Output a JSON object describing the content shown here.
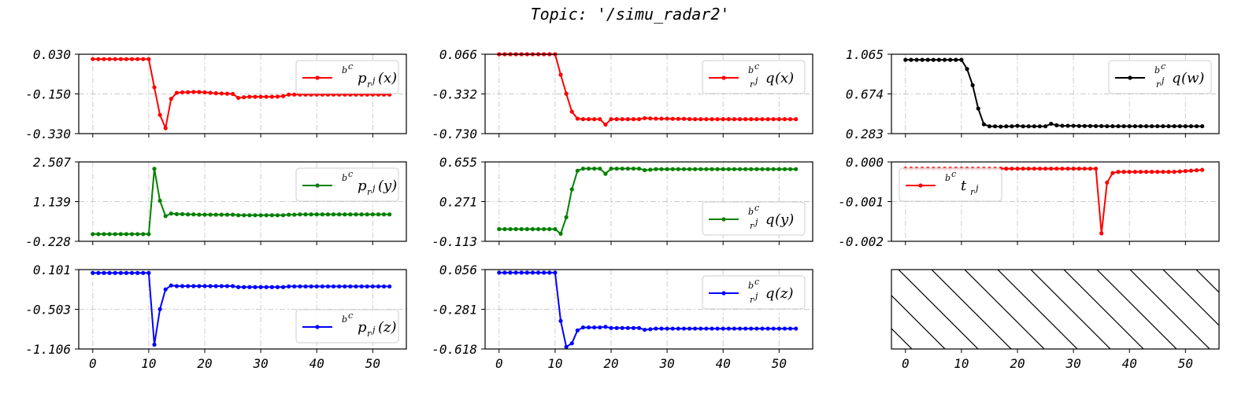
{
  "title": "Topic: '/simu_radar2'",
  "chart_data": [
    {
      "type": "line",
      "panel": "row1-col1",
      "color": "#ff0000",
      "legend_pos": "upper-right",
      "legend": {
        "sup": "b",
        "supsup": "c",
        "main": "p",
        "sub": "r",
        "subsup": "j",
        "arg": "(x)"
      },
      "ylim": [
        -0.33,
        0.03
      ],
      "yticks": [
        "0.030",
        "-0.150",
        "-0.330"
      ],
      "yticks_v": [
        0.03,
        -0.15,
        -0.33
      ],
      "xticks": [
        "0",
        "10",
        "20",
        "30",
        "40",
        "50"
      ],
      "show_x_labels": false,
      "xlim": [
        -2.5,
        56
      ],
      "y": [
        0.008,
        0.008,
        0.008,
        0.008,
        0.008,
        0.008,
        0.008,
        0.008,
        0.008,
        0.008,
        0.008,
        -0.12,
        -0.245,
        -0.305,
        -0.172,
        -0.145,
        -0.143,
        -0.142,
        -0.141,
        -0.141,
        -0.143,
        -0.145,
        -0.147,
        -0.148,
        -0.149,
        -0.15,
        -0.168,
        -0.165,
        -0.163,
        -0.163,
        -0.163,
        -0.163,
        -0.163,
        -0.162,
        -0.16,
        -0.153,
        -0.153,
        -0.153,
        -0.153,
        -0.153,
        -0.153,
        -0.153,
        -0.153,
        -0.153,
        -0.153,
        -0.153,
        -0.153,
        -0.153,
        -0.153,
        -0.153,
        -0.153,
        -0.153,
        -0.153,
        -0.153
      ]
    },
    {
      "type": "line",
      "panel": "row1-col2",
      "color": "#ff0000",
      "legend_pos": "upper-right",
      "legend": {
        "sup": "b",
        "supsup": "c",
        "main": "q",
        "sub": "r",
        "subsup": "j",
        "arg": "(x)",
        "presub": true
      },
      "ylim": [
        -0.73,
        0.066
      ],
      "yticks": [
        "0.066",
        "-0.332",
        "-0.730"
      ],
      "yticks_v": [
        0.066,
        -0.332,
        -0.73
      ],
      "xticks": [
        "0",
        "10",
        "20",
        "30",
        "40",
        "50"
      ],
      "show_x_labels": false,
      "xlim": [
        -2.5,
        56
      ],
      "y": [
        0.066,
        0.066,
        0.066,
        0.066,
        0.066,
        0.066,
        0.066,
        0.066,
        0.066,
        0.066,
        0.066,
        -0.14,
        -0.33,
        -0.51,
        -0.58,
        -0.585,
        -0.585,
        -0.585,
        -0.585,
        -0.64,
        -0.585,
        -0.585,
        -0.585,
        -0.585,
        -0.585,
        -0.585,
        -0.575,
        -0.578,
        -0.58,
        -0.58,
        -0.58,
        -0.582,
        -0.582,
        -0.582,
        -0.584,
        -0.585,
        -0.585,
        -0.585,
        -0.585,
        -0.585,
        -0.585,
        -0.585,
        -0.585,
        -0.585,
        -0.585,
        -0.585,
        -0.585,
        -0.585,
        -0.585,
        -0.585,
        -0.585,
        -0.585,
        -0.585,
        -0.585
      ]
    },
    {
      "type": "line",
      "panel": "row1-col3",
      "color": "#000000",
      "legend_pos": "upper-right",
      "legend": {
        "sup": "b",
        "supsup": "c",
        "main": "q",
        "sub": "r",
        "subsup": "j",
        "arg": "(w)",
        "presub": true
      },
      "ylim": [
        0.283,
        1.065
      ],
      "yticks": [
        "1.065",
        "0.674",
        "0.283"
      ],
      "yticks_v": [
        1.065,
        0.674,
        0.283
      ],
      "xticks": [
        "0",
        "10",
        "20",
        "30",
        "40",
        "50"
      ],
      "show_x_labels": false,
      "xlim": [
        -2.5,
        56
      ],
      "y": [
        1.01,
        1.01,
        1.01,
        1.01,
        1.01,
        1.01,
        1.01,
        1.01,
        1.01,
        1.01,
        1.01,
        0.92,
        0.76,
        0.53,
        0.375,
        0.355,
        0.355,
        0.352,
        0.355,
        0.355,
        0.36,
        0.355,
        0.355,
        0.355,
        0.355,
        0.355,
        0.38,
        0.365,
        0.36,
        0.36,
        0.36,
        0.358,
        0.358,
        0.358,
        0.357,
        0.357,
        0.356,
        0.356,
        0.356,
        0.356,
        0.356,
        0.356,
        0.356,
        0.356,
        0.356,
        0.356,
        0.356,
        0.356,
        0.356,
        0.356,
        0.356,
        0.356,
        0.356,
        0.356
      ]
    },
    {
      "type": "line",
      "panel": "row2-col1",
      "color": "#008000",
      "legend_pos": "upper-right",
      "legend": {
        "sup": "b",
        "supsup": "c",
        "main": "p",
        "sub": "r",
        "subsup": "j",
        "arg": "(y)"
      },
      "ylim": [
        -0.228,
        2.507
      ],
      "yticks": [
        "2.507",
        "1.139",
        "-0.228"
      ],
      "yticks_v": [
        2.507,
        1.139,
        -0.228
      ],
      "xticks": [
        "0",
        "10",
        "20",
        "30",
        "40",
        "50"
      ],
      "show_x_labels": false,
      "xlim": [
        -2.5,
        56
      ],
      "y": [
        0.02,
        0.02,
        0.02,
        0.02,
        0.02,
        0.02,
        0.02,
        0.02,
        0.02,
        0.02,
        0.02,
        2.27,
        1.17,
        0.64,
        0.73,
        0.71,
        0.71,
        0.7,
        0.7,
        0.69,
        0.69,
        0.69,
        0.69,
        0.69,
        0.69,
        0.69,
        0.67,
        0.67,
        0.67,
        0.67,
        0.67,
        0.67,
        0.67,
        0.67,
        0.67,
        0.69,
        0.69,
        0.7,
        0.7,
        0.7,
        0.7,
        0.7,
        0.7,
        0.7,
        0.7,
        0.7,
        0.7,
        0.7,
        0.7,
        0.7,
        0.7,
        0.7,
        0.7,
        0.7
      ]
    },
    {
      "type": "line",
      "panel": "row2-col2",
      "color": "#008000",
      "legend_pos": "lower-right",
      "legend": {
        "sup": "b",
        "supsup": "c",
        "main": "q",
        "sub": "r",
        "subsup": "j",
        "arg": "(y)",
        "presub": true
      },
      "ylim": [
        -0.113,
        0.655
      ],
      "yticks": [
        "0.655",
        "0.271",
        "-0.113"
      ],
      "yticks_v": [
        0.655,
        0.271,
        -0.113
      ],
      "xticks": [
        "0",
        "10",
        "20",
        "30",
        "40",
        "50"
      ],
      "show_x_labels": false,
      "xlim": [
        -2.5,
        56
      ],
      "y": [
        0.005,
        0.005,
        0.005,
        0.005,
        0.005,
        0.005,
        0.005,
        0.005,
        0.005,
        0.005,
        0.005,
        -0.04,
        0.12,
        0.39,
        0.57,
        0.59,
        0.59,
        0.59,
        0.59,
        0.54,
        0.59,
        0.59,
        0.59,
        0.59,
        0.59,
        0.59,
        0.575,
        0.58,
        0.585,
        0.585,
        0.585,
        0.585,
        0.585,
        0.585,
        0.585,
        0.585,
        0.585,
        0.585,
        0.585,
        0.585,
        0.585,
        0.585,
        0.585,
        0.585,
        0.585,
        0.585,
        0.585,
        0.585,
        0.585,
        0.585,
        0.585,
        0.585,
        0.585,
        0.585
      ]
    },
    {
      "type": "line",
      "panel": "row2-col3",
      "color": "#ff0000",
      "legend_pos": "lower-left",
      "legend": {
        "sup": "b",
        "supsup": "c",
        "main": "t",
        "sub": "r",
        "subsup": "j",
        "arg": ""
      },
      "ylim": [
        -0.002,
        0.0
      ],
      "yticks": [
        "0.000",
        "-0.001",
        "-0.002"
      ],
      "yticks_v": [
        0.0,
        -0.001,
        -0.002
      ],
      "xticks": [
        "0",
        "10",
        "20",
        "30",
        "40",
        "50"
      ],
      "show_x_labels": false,
      "xlim": [
        -2.5,
        56
      ],
      "y": [
        -0.00017,
        -0.00017,
        -0.00017,
        -0.00017,
        -0.00017,
        -0.00017,
        -0.00017,
        -0.00017,
        -0.00017,
        -0.00017,
        -0.00017,
        -0.00017,
        -0.00017,
        -0.00017,
        -0.00017,
        -0.00017,
        -0.00017,
        -0.00017,
        -0.00017,
        -0.00017,
        -0.00017,
        -0.00017,
        -0.00017,
        -0.00017,
        -0.00017,
        -0.00017,
        -0.00017,
        -0.00017,
        -0.00017,
        -0.00017,
        -0.00017,
        -0.00017,
        -0.00017,
        -0.00017,
        -0.00017,
        -0.0018,
        -0.00052,
        -0.00028,
        -0.00025,
        -0.00025,
        -0.00025,
        -0.00025,
        -0.00025,
        -0.00025,
        -0.00025,
        -0.00025,
        -0.00025,
        -0.00025,
        -0.00025,
        -0.00024,
        -0.00023,
        -0.00022,
        -0.00021,
        -0.0002
      ]
    },
    {
      "type": "line",
      "panel": "row3-col1",
      "color": "#0000ff",
      "legend_pos": "lower-right",
      "legend": {
        "sup": "b",
        "supsup": "c",
        "main": "p",
        "sub": "r",
        "subsup": "j",
        "arg": "(z)"
      },
      "ylim": [
        -1.106,
        0.101
      ],
      "yticks": [
        "0.101",
        "-0.503",
        "-1.106"
      ],
      "yticks_v": [
        0.101,
        -0.503,
        -1.106
      ],
      "xticks": [
        "0",
        "10",
        "20",
        "30",
        "40",
        "50"
      ],
      "show_x_labels": true,
      "xlim": [
        -2.5,
        56
      ],
      "y": [
        0.05,
        0.05,
        0.05,
        0.05,
        0.05,
        0.05,
        0.05,
        0.05,
        0.05,
        0.05,
        0.05,
        -1.04,
        -0.5,
        -0.2,
        -0.14,
        -0.15,
        -0.15,
        -0.15,
        -0.15,
        -0.15,
        -0.15,
        -0.15,
        -0.15,
        -0.15,
        -0.15,
        -0.15,
        -0.165,
        -0.165,
        -0.165,
        -0.165,
        -0.165,
        -0.165,
        -0.165,
        -0.165,
        -0.165,
        -0.155,
        -0.155,
        -0.155,
        -0.155,
        -0.155,
        -0.155,
        -0.155,
        -0.155,
        -0.155,
        -0.155,
        -0.155,
        -0.155,
        -0.155,
        -0.155,
        -0.155,
        -0.155,
        -0.155,
        -0.155,
        -0.155
      ]
    },
    {
      "type": "line",
      "panel": "row3-col2",
      "color": "#0000ff",
      "legend_pos": "upper-right",
      "legend": {
        "sup": "b",
        "supsup": "c",
        "main": "q",
        "sub": "r",
        "subsup": "j",
        "arg": "(z)",
        "presub": true
      },
      "ylim": [
        -0.618,
        0.056
      ],
      "yticks": [
        "0.056",
        "-0.281",
        "-0.618"
      ],
      "yticks_v": [
        0.056,
        -0.281,
        -0.618
      ],
      "xticks": [
        "0",
        "10",
        "20",
        "30",
        "40",
        "50"
      ],
      "show_x_labels": true,
      "xlim": [
        -2.5,
        56
      ],
      "y": [
        0.03,
        0.03,
        0.03,
        0.03,
        0.03,
        0.03,
        0.03,
        0.03,
        0.03,
        0.03,
        0.03,
        -0.38,
        -0.6,
        -0.57,
        -0.46,
        -0.435,
        -0.435,
        -0.435,
        -0.435,
        -0.43,
        -0.44,
        -0.44,
        -0.44,
        -0.44,
        -0.44,
        -0.44,
        -0.455,
        -0.45,
        -0.445,
        -0.445,
        -0.445,
        -0.445,
        -0.445,
        -0.445,
        -0.445,
        -0.445,
        -0.445,
        -0.445,
        -0.445,
        -0.445,
        -0.445,
        -0.445,
        -0.445,
        -0.445,
        -0.445,
        -0.445,
        -0.445,
        -0.445,
        -0.445,
        -0.445,
        -0.445,
        -0.445,
        -0.445,
        -0.445
      ]
    },
    {
      "type": "table",
      "panel": "row3-col3",
      "hatched": true,
      "xticks": [
        "0",
        "10",
        "20",
        "30",
        "40",
        "50"
      ],
      "show_x_labels": true,
      "xlim": [
        -2.5,
        56
      ]
    }
  ]
}
